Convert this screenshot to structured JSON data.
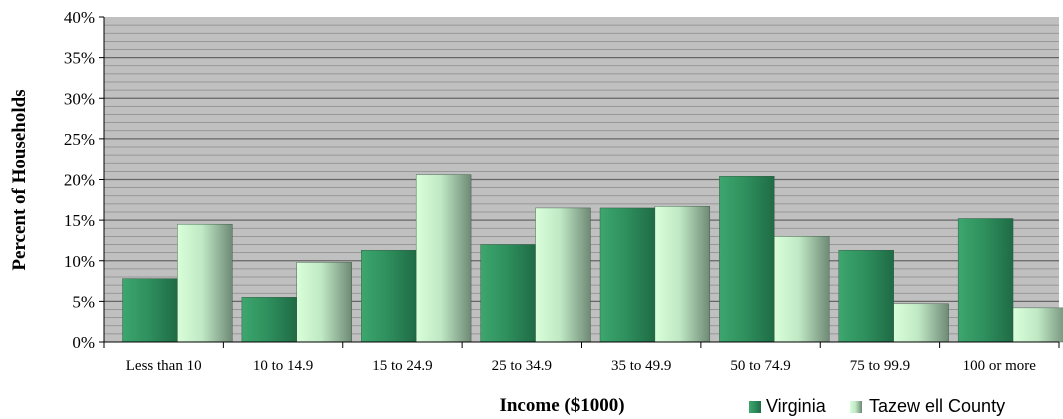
{
  "chart_data": {
    "type": "bar",
    "categories": [
      "Less than 10",
      "10 to 14.9",
      "15 to 24.9",
      "25 to 34.9",
      "35 to 49.9",
      "50 to 74.9",
      "75 to 99.9",
      "100 or more"
    ],
    "series": [
      {
        "name": "Virginia",
        "values": [
          7.8,
          5.5,
          11.3,
          12.0,
          16.5,
          20.4,
          11.3,
          15.2
        ]
      },
      {
        "name": "Tazew ell County",
        "values": [
          14.5,
          9.8,
          20.6,
          16.5,
          16.7,
          13.0,
          4.7,
          4.2
        ]
      }
    ],
    "xlabel": "Income ($1000)",
    "ylabel": "Percent of Households",
    "ylim": [
      0,
      40
    ],
    "yticks": [
      "0%",
      "5%",
      "10%",
      "15%",
      "20%",
      "25%",
      "30%",
      "35%",
      "40%"
    ],
    "grid": true,
    "legend_position": "bottom-right",
    "colors": {
      "plot_background": "#c0c0c0",
      "gridline": "#7f7f7f",
      "virginia_light": "#3da66e",
      "virginia_dark": "#1f6b45",
      "tazewell_light": "#d9ffd9",
      "tazewell_dark": "#6f8a76"
    }
  }
}
